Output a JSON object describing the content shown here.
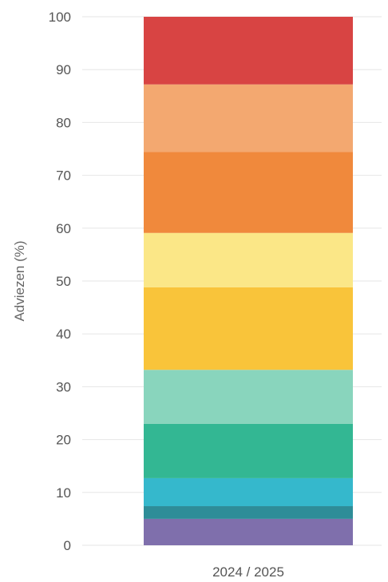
{
  "chart_data": {
    "type": "bar",
    "stacked": true,
    "categories": [
      "2024 / 2025"
    ],
    "ylabel": "Adviezen (%)",
    "ylim": [
      0,
      100
    ],
    "yticks": [
      0,
      10,
      20,
      30,
      40,
      50,
      60,
      70,
      80,
      90,
      100
    ],
    "grid": true,
    "series": [
      {
        "values": [
          5.0
        ],
        "color": "#7f6fac"
      },
      {
        "values": [
          2.4
        ],
        "color": "#2e8d98"
      },
      {
        "values": [
          5.3
        ],
        "color": "#35b8cc"
      },
      {
        "values": [
          10.3
        ],
        "color": "#33b793"
      },
      {
        "values": [
          10.2
        ],
        "color": "#89d5bd"
      },
      {
        "values": [
          15.6
        ],
        "color": "#f9c43a"
      },
      {
        "values": [
          10.3
        ],
        "color": "#fbe787"
      },
      {
        "values": [
          15.3
        ],
        "color": "#f0893c"
      },
      {
        "values": [
          12.8
        ],
        "color": "#f3a870"
      },
      {
        "values": [
          12.8
        ],
        "color": "#d84443"
      }
    ]
  }
}
